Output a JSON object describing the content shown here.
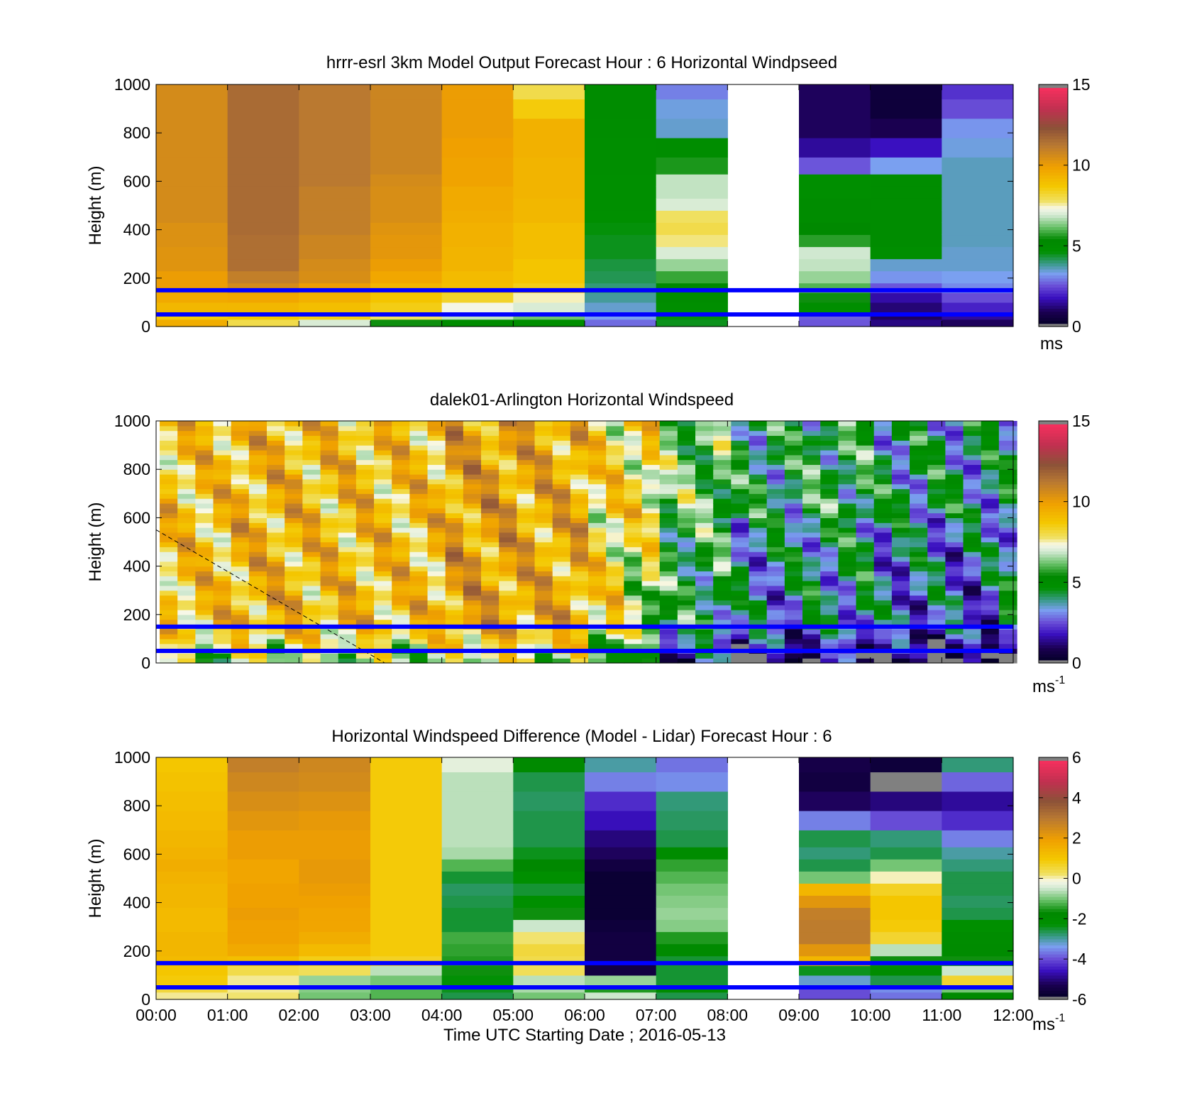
{
  "figure": {
    "xlabel": "Time UTC  Starting Date ; 2016-05-13",
    "xtick_labels": [
      "00:00",
      "01:00",
      "02:00",
      "03:00",
      "04:00",
      "05:00",
      "06:00",
      "07:00",
      "08:00",
      "09:00",
      "10:00",
      "11:00",
      "12:00"
    ]
  },
  "chart_data": [
    {
      "type": "heatmap",
      "name": "model",
      "title": "hrrr-esrl 3km Model Output   Forecast Hour : 6 Horizontal Windpseed",
      "ylabel": "Height (m)",
      "xlim": [
        0,
        12
      ],
      "ylim": [
        0,
        1000
      ],
      "yticks": [
        "0",
        "200",
        "400",
        "600",
        "800",
        "1000"
      ],
      "colorbar": {
        "range": [
          0,
          15
        ],
        "ticks": [
          "0",
          "5",
          "10",
          "15"
        ],
        "unit": "ms",
        "unit_sup": ""
      },
      "grid": false,
      "cell_width_hours": 1,
      "levels": [
        0,
        30,
        60,
        100,
        140,
        180,
        230,
        280,
        330,
        380,
        430,
        480,
        530,
        580,
        630,
        700,
        780,
        860,
        940,
        1000
      ],
      "columns": [
        [
          9.5,
          8.6,
          9.2,
          9.6,
          10.0,
          10.0,
          10.3,
          10.3,
          10.4,
          10.4,
          10.6,
          10.6,
          10.6,
          10.6,
          10.6,
          10.6,
          10.6,
          10.6,
          10.6
        ],
        [
          8.0,
          8.7,
          9.2,
          9.7,
          10.6,
          11.0,
          11.5,
          11.5,
          11.5,
          11.6,
          11.6,
          11.6,
          11.6,
          11.6,
          11.6,
          11.6,
          11.6,
          11.6,
          11.6
        ],
        [
          7.0,
          8.5,
          9.0,
          9.4,
          10.0,
          10.5,
          10.6,
          10.8,
          10.8,
          11.0,
          11.0,
          11.0,
          11.0,
          11.2,
          11.2,
          11.2,
          11.2,
          11.2,
          11.2
        ],
        [
          5.5,
          7.8,
          8.5,
          8.8,
          9.3,
          9.7,
          10.0,
          10.2,
          10.2,
          10.3,
          10.5,
          10.5,
          10.5,
          10.6,
          10.8,
          10.8,
          10.8,
          10.8,
          10.8
        ],
        [
          5.0,
          6.8,
          7.3,
          8.3,
          9.0,
          9.1,
          9.3,
          9.3,
          9.4,
          9.4,
          9.5,
          9.6,
          9.6,
          9.8,
          9.8,
          9.9,
          10.0,
          10.0,
          10.0
        ],
        [
          4.8,
          6.2,
          7.0,
          7.5,
          8.5,
          8.8,
          8.8,
          9.0,
          9.0,
          9.0,
          9.2,
          9.2,
          9.3,
          9.3,
          9.3,
          9.4,
          9.4,
          8.6,
          8.0
        ],
        [
          2.8,
          3.3,
          3.5,
          3.8,
          4.0,
          4.2,
          4.3,
          4.5,
          4.5,
          4.6,
          4.7,
          4.7,
          4.7,
          4.7,
          4.8,
          4.8,
          4.9,
          5.0,
          5.0
        ],
        [
          4.5,
          4.6,
          4.8,
          5.0,
          5.3,
          5.8,
          6.5,
          7.0,
          7.7,
          8.0,
          7.8,
          7.0,
          6.8,
          6.8,
          5.6,
          4.9,
          3.5,
          3.4,
          3.0
        ],
        [
          null,
          null,
          null,
          null,
          null,
          null,
          null,
          null,
          null,
          null,
          null,
          null,
          null,
          null,
          null,
          null,
          null,
          null,
          null
        ],
        [
          2.6,
          2.7,
          4.8,
          5.5,
          6.0,
          6.5,
          6.8,
          6.9,
          5.7,
          5.3,
          5.0,
          5.0,
          4.8,
          4.8,
          2.6,
          1.5,
          1.0,
          1.0,
          1.0
        ],
        [
          1.3,
          1.0,
          1.2,
          1.6,
          2.6,
          3.2,
          3.5,
          4.8,
          5.0,
          5.0,
          5.0,
          4.9,
          4.9,
          4.9,
          3.3,
          1.8,
          0.9,
          0.5,
          0.5
        ],
        [
          1.0,
          1.5,
          2.0,
          2.5,
          3.1,
          3.3,
          3.5,
          3.5,
          3.6,
          3.6,
          3.6,
          3.6,
          3.6,
          3.6,
          3.6,
          3.4,
          3.2,
          2.5,
          2.2
        ]
      ]
    },
    {
      "type": "heatmap",
      "name": "lidar",
      "title": "dalek01-Arlington  Horizontal Windspeed",
      "ylabel": "Height (m)",
      "xlim": [
        0,
        12
      ],
      "ylim": [
        0,
        1000
      ],
      "yticks": [
        "0",
        "200",
        "400",
        "600",
        "800",
        "1000"
      ],
      "colorbar": {
        "range": [
          0,
          15
        ],
        "ticks": [
          "0",
          "5",
          "10",
          "15"
        ],
        "unit": "ms",
        "unit_sup": "-1"
      },
      "grid": false,
      "profiles_per_hour": 4,
      "first_profile_hour": 0.05,
      "height_step_m": 20,
      "annotation": {
        "type": "dashed-line",
        "from": [
          0.0,
          550
        ],
        "to": [
          3.2,
          0
        ]
      },
      "hourly_mean": [
        8.8,
        9.2,
        9.0,
        8.9,
        9.8,
        9.5,
        8.2,
        6.0,
        4.6,
        5.0,
        4.2,
        4.0
      ],
      "max_height_m": 1000
    },
    {
      "type": "heatmap",
      "name": "difference",
      "title": "Horizontal Windspeed Difference (Model - Lidar) Forecast Hour : 6",
      "ylabel": "Height (m)",
      "xlim": [
        0,
        12
      ],
      "ylim": [
        0,
        1000
      ],
      "yticks": [
        "0",
        "200",
        "400",
        "600",
        "800",
        "1000"
      ],
      "colorbar": {
        "range": [
          -6,
          6
        ],
        "ticks": [
          "-6",
          "-4",
          "-2",
          "0",
          "2",
          "4",
          "6"
        ],
        "unit": "ms",
        "unit_sup": "-1"
      },
      "grid": false,
      "cell_width_hours": 1,
      "levels": [
        0,
        30,
        60,
        100,
        140,
        180,
        230,
        280,
        330,
        380,
        430,
        480,
        530,
        580,
        630,
        700,
        780,
        860,
        940,
        1000
      ],
      "columns": [
        [
          0.1,
          0.5,
          0.9,
          1.0,
          1.3,
          1.4,
          1.4,
          1.3,
          1.3,
          1.4,
          1.4,
          1.5,
          1.6,
          1.5,
          1.4,
          1.3,
          1.2,
          1.1,
          1.0
        ],
        [
          0.2,
          0.1,
          0.1,
          0.4,
          1.2,
          1.7,
          1.9,
          1.9,
          2.0,
          1.9,
          1.9,
          1.8,
          1.8,
          2.0,
          2.0,
          2.2,
          2.4,
          2.6,
          2.8
        ],
        [
          -1.0,
          -0.9,
          -0.8,
          0.3,
          0.8,
          1.3,
          1.6,
          1.8,
          1.8,
          1.9,
          2.0,
          2.1,
          2.1,
          2.0,
          2.0,
          2.1,
          2.3,
          2.5,
          2.6
        ],
        [
          -1.2,
          -1.2,
          -1.0,
          -0.6,
          0.7,
          0.9,
          0.9,
          0.9,
          0.9,
          0.9,
          0.9,
          0.9,
          0.9,
          0.9,
          0.9,
          0.9,
          0.9,
          0.9,
          0.9
        ],
        [
          -2.6,
          -2.4,
          -2.3,
          -1.6,
          -1.5,
          -1.4,
          -1.3,
          -2.5,
          -2.5,
          -2.6,
          -2.7,
          -2.5,
          -1.2,
          -0.7,
          -0.6,
          -0.6,
          -0.6,
          -0.6,
          -0.3
        ],
        [
          -1.0,
          -0.7,
          -0.6,
          0.3,
          0.4,
          0.5,
          0.2,
          -0.5,
          -1.6,
          -2.2,
          -2.5,
          -2.2,
          -1.7,
          -2.4,
          -2.6,
          -2.6,
          -2.7,
          -2.6,
          -1.8
        ],
        [
          -0.5,
          -1.5,
          -0.8,
          -5.5,
          -5.5,
          -5.5,
          -5.5,
          -5.6,
          -5.7,
          -5.7,
          -5.7,
          -5.7,
          -5.5,
          -5.2,
          -5.0,
          -4.6,
          -4.3,
          -3.6,
          -3.0
        ],
        [
          -2.6,
          -2.0,
          -2.5,
          -2.5,
          -2.5,
          -1.8,
          -1.5,
          -0.9,
          -0.8,
          -0.9,
          -1.0,
          -1.2,
          -1.4,
          -2.0,
          -2.6,
          -2.7,
          -2.8,
          -3.5,
          -3.7
        ],
        [
          null,
          null,
          null,
          null,
          null,
          null,
          null,
          null,
          null,
          null,
          null,
          null,
          null,
          null,
          null,
          null,
          null,
          null,
          null
        ],
        [
          -4.0,
          -4.0,
          -3.2,
          -2.4,
          1.4,
          2.2,
          2.9,
          2.9,
          2.8,
          2.2,
          1.4,
          -1.0,
          -2.6,
          -2.8,
          -2.6,
          -3.6,
          -5.2,
          -5.5,
          -5.4
        ],
        [
          -3.7,
          -3.5,
          -2.6,
          -2.0,
          -1.6,
          -0.6,
          0.6,
          0.9,
          1.0,
          1.0,
          0.7,
          0.0,
          -1.0,
          -2.6,
          -2.8,
          -4.0,
          -5.0,
          6.1,
          -5.6
        ],
        [
          -1.8,
          -1.0,
          0.6,
          -0.5,
          -1.6,
          -1.9,
          -2.0,
          -2.2,
          -2.6,
          -2.7,
          -2.6,
          -2.6,
          -2.8,
          -3.0,
          -3.6,
          -4.3,
          -4.8,
          -3.8,
          -2.8
        ]
      ]
    }
  ],
  "overlays": {
    "blue_lines_m": [
      150,
      50
    ],
    "line_color": "#0000ff"
  },
  "colormap": {
    "under": "#808080",
    "over": "#808080",
    "stops": [
      [
        0.0,
        "#000020"
      ],
      [
        0.06,
        "#1a0050"
      ],
      [
        0.12,
        "#3a10c0"
      ],
      [
        0.17,
        "#6a50d8"
      ],
      [
        0.22,
        "#7aa0f0"
      ],
      [
        0.26,
        "#3a9a8a"
      ],
      [
        0.31,
        "#009000"
      ],
      [
        0.36,
        "#008800"
      ],
      [
        0.41,
        "#66c066"
      ],
      [
        0.46,
        "#d0e8d0"
      ],
      [
        0.49,
        "#f8f8e8"
      ],
      [
        0.52,
        "#f0e060"
      ],
      [
        0.58,
        "#f4c800"
      ],
      [
        0.66,
        "#f0a000"
      ],
      [
        0.75,
        "#b87832"
      ],
      [
        0.82,
        "#8c5238"
      ],
      [
        0.9,
        "#c03050"
      ],
      [
        1.0,
        "#ff3060"
      ]
    ]
  }
}
